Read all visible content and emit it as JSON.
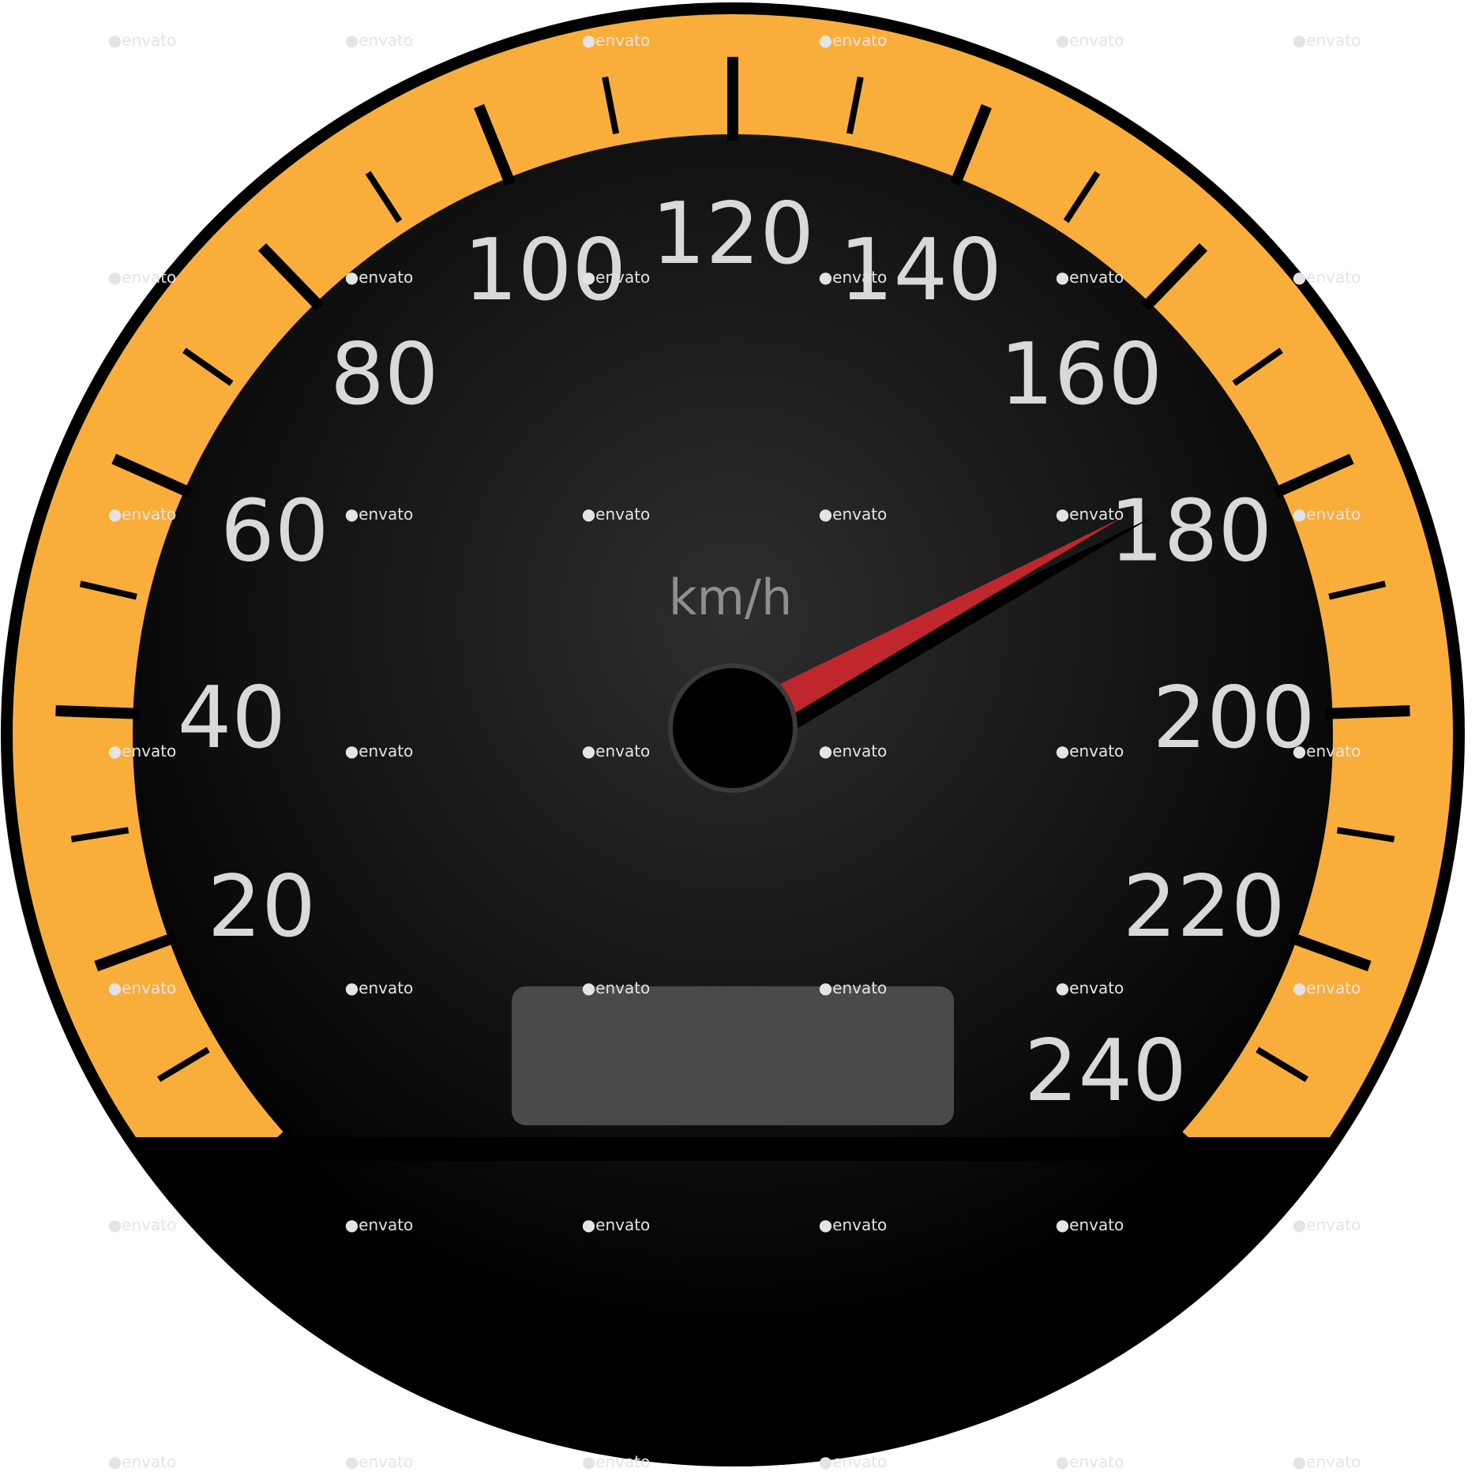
{
  "gauge": {
    "unit": "km/h",
    "scale_min": 0,
    "scale_max": 240,
    "labels": [
      "20",
      "40",
      "60",
      "80",
      "100",
      "120",
      "140",
      "160",
      "180",
      "200",
      "220",
      "240"
    ],
    "needle_value": 176,
    "odometer_value": "",
    "colors": {
      "bezel": "#f9ae3c",
      "rim": "#000000",
      "face_center": "#2e2e2e",
      "face_edge": "#000000",
      "needle": "#c0272d",
      "needle_shadow": "#000000",
      "hub": "#000000",
      "hub_ring": "#3a3a3a",
      "odometer": "#4a4a4a",
      "label_text": "#d9d9d9",
      "unit_text": "#8e8e8e"
    }
  },
  "watermark": {
    "text": "envato"
  }
}
